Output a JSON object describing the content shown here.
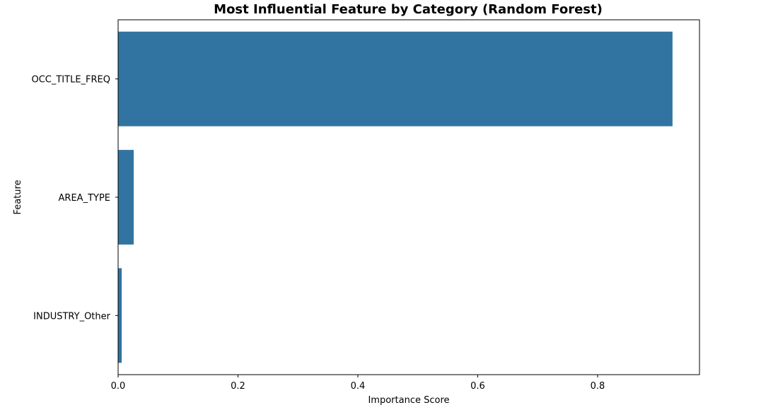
{
  "chart_data": {
    "type": "bar",
    "orientation": "horizontal",
    "title": "Most Influential Feature by Category (Random Forest)",
    "xlabel": "Importance Score",
    "ylabel": "Feature",
    "categories": [
      "OCC_TITLE_FREQ",
      "AREA_TYPE",
      "INDUSTRY_Other"
    ],
    "values": [
      0.925,
      0.026,
      0.006
    ],
    "xlim": [
      0,
      0.97
    ],
    "xticks": [
      0.0,
      0.2,
      0.4,
      0.6,
      0.8
    ],
    "xtick_labels": [
      "0.0",
      "0.2",
      "0.4",
      "0.6",
      "0.8"
    ],
    "bar_color": "#3274a1",
    "grid": false
  }
}
